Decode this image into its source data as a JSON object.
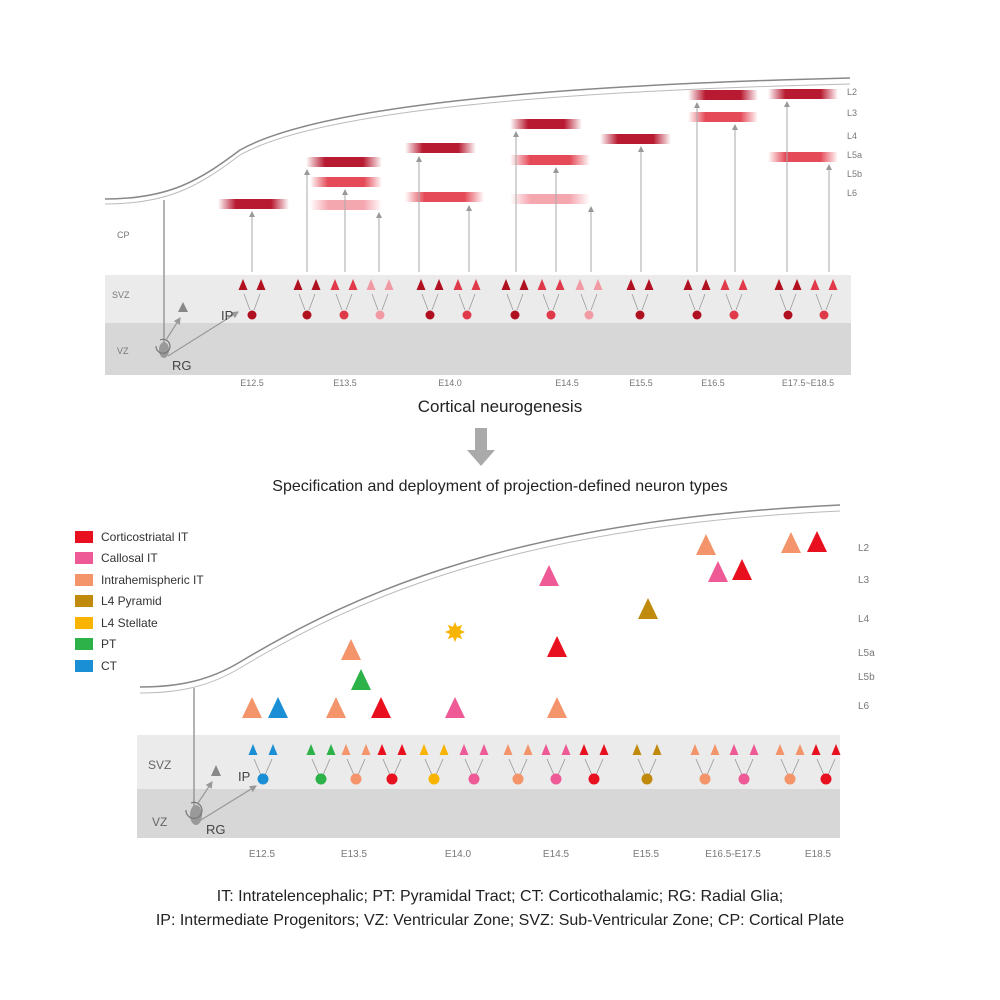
{
  "top_panel": {
    "layers": [
      "L2",
      "L3",
      "L4",
      "L5a",
      "L5b",
      "L6"
    ],
    "zones": {
      "cp": "CP",
      "svz": "SVZ",
      "vz": "VZ"
    },
    "cells": {
      "rg": "RG",
      "ip": "IP"
    },
    "timepoints": [
      "E12.5",
      "E13.5",
      "E14.0",
      "E14.5",
      "E15.5",
      "E16.5",
      "E17.5~E18.5"
    ],
    "title": "Cortical neurogenesis"
  },
  "subtitle": "Specification and deployment of projection-defined neuron types",
  "legend": [
    {
      "label": "Corticostriatal IT",
      "color": "#e8101e"
    },
    {
      "label": "Callosal IT",
      "color": "#ee5a96"
    },
    {
      "label": "Intrahemispheric IT",
      "color": "#f3946a"
    },
    {
      "label": "L4 Pyramid",
      "color": "#c08a0c"
    },
    {
      "label": "L4 Stellate",
      "color": "#f8b400"
    },
    {
      "label": "PT",
      "color": "#2db24a"
    },
    {
      "label": "CT",
      "color": "#1a8fd6"
    }
  ],
  "bottom_panel": {
    "layers": [
      "L2",
      "L3",
      "L4",
      "L5a",
      "L5b",
      "L6"
    ],
    "zones": {
      "svz": "SVZ",
      "vz": "VZ"
    },
    "cells": {
      "rg": "RG",
      "ip": "IP"
    },
    "timepoints": [
      "E12.5",
      "E13.5",
      "E14.0",
      "E14.5",
      "E15.5",
      "E16.5-E17.5",
      "E18.5"
    ]
  },
  "footnote": {
    "line1": "IT: Intratelencephalic; PT: Pyramidal Tract; CT: Corticothalamic; RG: Radial Glia;",
    "line2": "IP: Intermediate Progenitors; VZ: Ventricular Zone; SVZ: Sub-Ventricular Zone; CP: Cortical Plate"
  }
}
